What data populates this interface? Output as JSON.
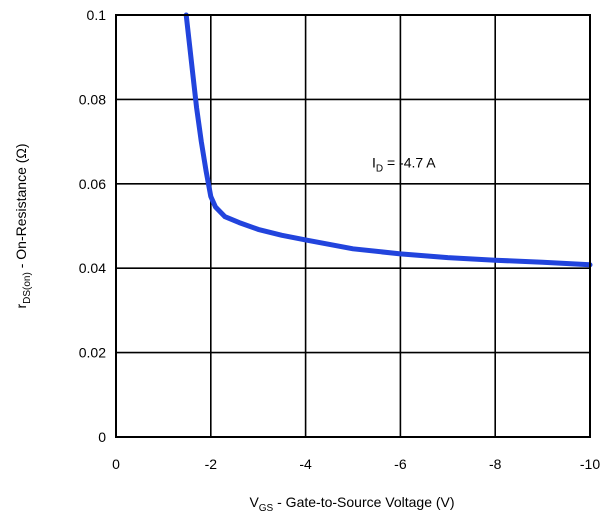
{
  "chart_data": {
    "type": "line",
    "title": "",
    "xlabel": {
      "main": "V",
      "sub": "GS",
      "rest": " - Gate-to-Source Voltage (V)"
    },
    "ylabel": {
      "main": "r",
      "sub": "DS(on)",
      "rest": " - On-Resistance (Ω)"
    },
    "xlim": [
      0,
      -10
    ],
    "ylim": [
      0,
      0.1
    ],
    "x_ticks": [
      0,
      -2,
      -4,
      -6,
      -8,
      -10
    ],
    "x_tick_labels": [
      "0",
      "-2",
      "-4",
      "-6",
      "-8",
      "-10"
    ],
    "y_ticks": [
      0,
      0.02,
      0.04,
      0.06,
      0.08,
      0.1
    ],
    "y_tick_labels": [
      "0",
      "0.02",
      "0.04",
      "0.06",
      "0.08",
      "0.1"
    ],
    "grid": true,
    "series": [
      {
        "color": "#2244dd",
        "x": [
          -1.48,
          -1.55,
          -1.62,
          -1.7,
          -1.8,
          -1.9,
          -2.0,
          -2.1,
          -2.3,
          -2.6,
          -3.0,
          -3.5,
          -4.0,
          -5.0,
          -6.0,
          -7.0,
          -8.0,
          -9.0,
          -10.0
        ],
        "y": [
          0.1,
          0.093,
          0.086,
          0.078,
          0.07,
          0.063,
          0.057,
          0.0545,
          0.0522,
          0.0508,
          0.0492,
          0.0478,
          0.0467,
          0.0446,
          0.0434,
          0.0425,
          0.0419,
          0.0414,
          0.0408
        ]
      }
    ],
    "annotations": [
      {
        "main": "I",
        "sub": "D",
        "rest": " = -4.7 A",
        "x": -5.4,
        "y": 0.065
      }
    ]
  }
}
